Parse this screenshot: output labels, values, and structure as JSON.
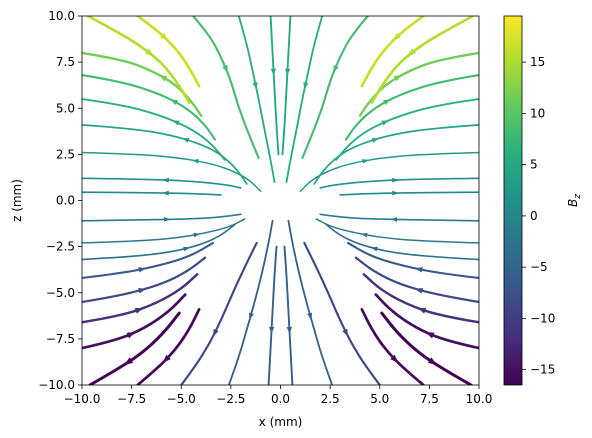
{
  "chart_data": {
    "type": "streamplot",
    "title": "",
    "xlabel": "x (mm)",
    "ylabel": "z (mm)",
    "xlim": [
      -10,
      10
    ],
    "ylim": [
      -10,
      10
    ],
    "x_ticks": [
      -10.0,
      -7.5,
      -5.0,
      -2.5,
      0.0,
      2.5,
      5.0,
      7.5,
      10.0
    ],
    "y_ticks": [
      -10.0,
      -7.5,
      -5.0,
      -2.5,
      0.0,
      2.5,
      5.0,
      7.5,
      10.0
    ],
    "x_tick_labels": [
      "−10.0",
      "−7.5",
      "−5.0",
      "−2.5",
      "0.0",
      "2.5",
      "5.0",
      "7.5",
      "10.0"
    ],
    "y_tick_labels": [
      "−10.0",
      "−7.5",
      "−5.0",
      "−2.5",
      "0.0",
      "2.5",
      "5.0",
      "7.5",
      "10.0"
    ],
    "grid": false,
    "field": "saddle (quadrupole-like) field: streamlines enter vertically near x=0 and bend outward horizontally; color encodes Bz",
    "colormap": "viridis",
    "colorbar": {
      "label": "B_z",
      "label_main": "B",
      "label_sub": "z",
      "vmin": -16.5,
      "vmax": 19.5,
      "ticks": [
        -15,
        -10,
        -5,
        0,
        5,
        10,
        15
      ],
      "tick_labels": [
        "−15",
        "−10",
        "−5",
        "0",
        "5",
        "10",
        "15"
      ]
    },
    "series": [
      {
        "values": [
          [
            -10,
            1.2
          ],
          [
            -7,
            1.16
          ],
          [
            -4.5,
            1.05
          ],
          [
            -2.7,
            0.85
          ],
          [
            -2,
            0.68
          ]
        ]
      },
      {
        "values": [
          [
            -10,
            0.45
          ],
          [
            -7,
            0.43
          ],
          [
            -4.5,
            0.38
          ],
          [
            -3,
            0.3
          ]
        ]
      },
      {
        "values": [
          [
            -10,
            2.6
          ],
          [
            -7,
            2.5
          ],
          [
            -5,
            2.3
          ],
          [
            -3.5,
            2.0
          ],
          [
            -2.5,
            1.65
          ],
          [
            -1.6,
            1.15
          ],
          [
            -1.0,
            0.5
          ]
        ]
      },
      {
        "values": [
          [
            -10,
            4.1
          ],
          [
            -7.5,
            3.9
          ],
          [
            -5.5,
            3.55
          ],
          [
            -4,
            3.05
          ],
          [
            -3,
            2.5
          ],
          [
            -2.2,
            1.7
          ],
          [
            -1.7,
            0.9
          ]
        ]
      },
      {
        "values": [
          [
            -10,
            5.5
          ],
          [
            -8,
            5.2
          ],
          [
            -6,
            4.6
          ],
          [
            -4.5,
            3.9
          ],
          [
            -3.5,
            3.1
          ],
          [
            -2.8,
            2.2
          ]
        ]
      },
      {
        "values": [
          [
            -10,
            6.8
          ],
          [
            -8,
            6.45
          ],
          [
            -6,
            5.75
          ],
          [
            -4.7,
            5.0
          ],
          [
            -3.8,
            4.1
          ],
          [
            -3.3,
            3.3
          ]
        ]
      },
      {
        "values": [
          [
            -10,
            8.0
          ],
          [
            -8,
            7.65
          ],
          [
            -6.5,
            7.05
          ],
          [
            -5.3,
            6.3
          ],
          [
            -4.5,
            5.4
          ],
          [
            -4.0,
            4.6
          ]
        ]
      },
      {
        "values": [
          [
            -9.7,
            10
          ],
          [
            -8.5,
            9.3
          ],
          [
            -7.2,
            8.5
          ],
          [
            -6.0,
            7.5
          ],
          [
            -5.2,
            6.4
          ],
          [
            -4.6,
            5.3
          ]
        ]
      },
      {
        "values": [
          [
            -7.2,
            10
          ],
          [
            -6.3,
            9.3
          ],
          [
            -5.4,
            8.4
          ],
          [
            -4.7,
            7.4
          ],
          [
            -4.1,
            6.2
          ]
        ]
      },
      {
        "values": [
          [
            -4.4,
            10
          ],
          [
            -3.6,
            9.0
          ],
          [
            -3.0,
            7.8
          ],
          [
            -2.5,
            6.5
          ],
          [
            -2.1,
            5.0
          ],
          [
            -1.6,
            3.6
          ],
          [
            -1.1,
            2.3
          ]
        ]
      },
      {
        "values": [
          [
            -2.1,
            10
          ],
          [
            -1.7,
            8.5
          ],
          [
            -1.4,
            7.0
          ],
          [
            -1.1,
            5.5
          ],
          [
            -0.8,
            3.8
          ],
          [
            -0.5,
            2.2
          ],
          [
            -0.3,
            1.0
          ]
        ]
      },
      {
        "values": [
          [
            -0.5,
            10
          ],
          [
            -0.4,
            8
          ],
          [
            -0.3,
            6
          ],
          [
            -0.2,
            4
          ],
          [
            -0.1,
            2.5
          ]
        ]
      },
      {
        "values": [
          [
            10,
            1.2
          ],
          [
            7,
            1.16
          ],
          [
            4.5,
            1.05
          ],
          [
            2.7,
            0.85
          ],
          [
            2,
            0.68
          ]
        ]
      },
      {
        "values": [
          [
            10,
            0.45
          ],
          [
            7,
            0.43
          ],
          [
            4.5,
            0.38
          ],
          [
            3,
            0.3
          ]
        ]
      },
      {
        "values": [
          [
            10,
            2.6
          ],
          [
            7,
            2.5
          ],
          [
            5,
            2.3
          ],
          [
            3.5,
            2.0
          ],
          [
            2.5,
            1.65
          ],
          [
            1.6,
            1.15
          ],
          [
            1.0,
            0.5
          ]
        ]
      },
      {
        "values": [
          [
            10,
            4.1
          ],
          [
            7.5,
            3.9
          ],
          [
            5.5,
            3.55
          ],
          [
            4,
            3.05
          ],
          [
            3,
            2.5
          ],
          [
            2.2,
            1.7
          ],
          [
            1.7,
            0.9
          ]
        ]
      },
      {
        "values": [
          [
            10,
            5.5
          ],
          [
            8,
            5.2
          ],
          [
            6,
            4.6
          ],
          [
            4.5,
            3.9
          ],
          [
            3.5,
            3.1
          ],
          [
            2.8,
            2.2
          ]
        ]
      },
      {
        "values": [
          [
            10,
            6.8
          ],
          [
            8,
            6.45
          ],
          [
            6,
            5.75
          ],
          [
            4.7,
            5.0
          ],
          [
            3.8,
            4.1
          ],
          [
            3.3,
            3.3
          ]
        ]
      },
      {
        "values": [
          [
            10,
            8.0
          ],
          [
            8,
            7.65
          ],
          [
            6.5,
            7.05
          ],
          [
            5.3,
            6.3
          ],
          [
            4.5,
            5.4
          ],
          [
            4.0,
            4.6
          ]
        ]
      },
      {
        "values": [
          [
            9.7,
            10
          ],
          [
            8.5,
            9.3
          ],
          [
            7.2,
            8.5
          ],
          [
            6.0,
            7.5
          ],
          [
            5.2,
            6.4
          ],
          [
            4.6,
            5.3
          ]
        ]
      },
      {
        "values": [
          [
            7.2,
            10
          ],
          [
            6.3,
            9.3
          ],
          [
            5.4,
            8.4
          ],
          [
            4.7,
            7.4
          ],
          [
            4.1,
            6.2
          ]
        ]
      },
      {
        "values": [
          [
            4.4,
            10
          ],
          [
            3.6,
            9.0
          ],
          [
            3.0,
            7.8
          ],
          [
            2.5,
            6.5
          ],
          [
            2.1,
            5.0
          ],
          [
            1.6,
            3.6
          ],
          [
            1.1,
            2.3
          ]
        ]
      },
      {
        "values": [
          [
            2.1,
            10
          ],
          [
            1.7,
            8.5
          ],
          [
            1.4,
            7.0
          ],
          [
            1.1,
            5.5
          ],
          [
            0.8,
            3.8
          ],
          [
            0.5,
            2.2
          ],
          [
            0.3,
            1.0
          ]
        ]
      },
      {
        "values": [
          [
            0.5,
            10
          ],
          [
            0.4,
            8
          ],
          [
            0.3,
            6
          ],
          [
            0.2,
            4
          ],
          [
            0.1,
            2.5
          ]
        ]
      },
      {
        "values": [
          [
            -10,
            -1.1
          ],
          [
            -7,
            -1.05
          ],
          [
            -4.5,
            -1.0
          ],
          [
            -3,
            -0.9
          ],
          [
            -2,
            -0.75
          ]
        ]
      },
      {
        "values": [
          [
            -10,
            -2.3
          ],
          [
            -7,
            -2.2
          ],
          [
            -5,
            -2.0
          ],
          [
            -3.5,
            -1.7
          ],
          [
            -2.5,
            -1.4
          ],
          [
            -1.8,
            -1.0
          ]
        ]
      },
      {
        "values": [
          [
            -10,
            -3.2
          ],
          [
            -7.5,
            -3.05
          ],
          [
            -5.5,
            -2.8
          ],
          [
            -4,
            -2.4
          ],
          [
            -3,
            -1.9
          ],
          [
            -2.3,
            -1.3
          ]
        ]
      },
      {
        "values": [
          [
            -10,
            -4.2
          ],
          [
            -8,
            -3.95
          ],
          [
            -6,
            -3.5
          ],
          [
            -4.5,
            -3.0
          ],
          [
            -3.4,
            -2.3
          ]
        ]
      },
      {
        "values": [
          [
            -10,
            -5.5
          ],
          [
            -8,
            -5.15
          ],
          [
            -6,
            -4.55
          ],
          [
            -4.7,
            -3.85
          ],
          [
            -3.8,
            -3.1
          ]
        ]
      },
      {
        "values": [
          [
            -10,
            -6.6
          ],
          [
            -8,
            -6.25
          ],
          [
            -6.3,
            -5.6
          ],
          [
            -5.0,
            -4.8
          ],
          [
            -4.2,
            -4.0
          ]
        ]
      },
      {
        "values": [
          [
            -10,
            -8.0
          ],
          [
            -8.3,
            -7.6
          ],
          [
            -6.8,
            -6.9
          ],
          [
            -5.6,
            -6.0
          ],
          [
            -4.8,
            -5.1
          ]
        ]
      },
      {
        "values": [
          [
            -9.6,
            -10
          ],
          [
            -8.3,
            -9.2
          ],
          [
            -7.0,
            -8.3
          ],
          [
            -5.9,
            -7.2
          ],
          [
            -5.1,
            -6.1
          ]
        ]
      },
      {
        "values": [
          [
            -7.2,
            -10
          ],
          [
            -6.2,
            -9.1
          ],
          [
            -5.3,
            -8.1
          ],
          [
            -4.6,
            -7.0
          ],
          [
            -4.1,
            -5.9
          ]
        ]
      },
      {
        "values": [
          [
            -5.0,
            -10
          ],
          [
            -4.3,
            -9.0
          ],
          [
            -3.6,
            -7.8
          ],
          [
            -3.0,
            -6.5
          ],
          [
            -2.4,
            -5.0
          ],
          [
            -1.8,
            -3.6
          ],
          [
            -1.2,
            -2.3
          ]
        ]
      },
      {
        "values": [
          [
            -2.6,
            -10
          ],
          [
            -2.1,
            -8.5
          ],
          [
            -1.7,
            -7.0
          ],
          [
            -1.3,
            -5.5
          ],
          [
            -0.9,
            -3.8
          ],
          [
            -0.6,
            -2.3
          ],
          [
            -0.4,
            -1.1
          ]
        ]
      },
      {
        "values": [
          [
            -0.6,
            -10
          ],
          [
            -0.5,
            -8
          ],
          [
            -0.4,
            -6
          ],
          [
            -0.3,
            -4
          ],
          [
            -0.2,
            -2.5
          ]
        ]
      },
      {
        "values": [
          [
            10,
            -1.1
          ],
          [
            7,
            -1.05
          ],
          [
            4.5,
            -1.0
          ],
          [
            3,
            -0.9
          ],
          [
            2,
            -0.75
          ]
        ]
      },
      {
        "values": [
          [
            10,
            -2.3
          ],
          [
            7,
            -2.2
          ],
          [
            5,
            -2.0
          ],
          [
            3.5,
            -1.7
          ],
          [
            2.5,
            -1.4
          ],
          [
            1.8,
            -1.0
          ]
        ]
      },
      {
        "values": [
          [
            10,
            -3.2
          ],
          [
            7.5,
            -3.05
          ],
          [
            5.5,
            -2.8
          ],
          [
            4,
            -2.4
          ],
          [
            3,
            -1.9
          ],
          [
            2.3,
            -1.3
          ]
        ]
      },
      {
        "values": [
          [
            10,
            -4.2
          ],
          [
            8,
            -3.95
          ],
          [
            6,
            -3.5
          ],
          [
            4.5,
            -3.0
          ],
          [
            3.4,
            -2.3
          ]
        ]
      },
      {
        "values": [
          [
            10,
            -5.5
          ],
          [
            8,
            -5.15
          ],
          [
            6,
            -4.55
          ],
          [
            4.7,
            -3.85
          ],
          [
            3.8,
            -3.1
          ]
        ]
      },
      {
        "values": [
          [
            10,
            -6.6
          ],
          [
            8,
            -6.25
          ],
          [
            6.3,
            -5.6
          ],
          [
            5.0,
            -4.8
          ],
          [
            4.2,
            -4.0
          ]
        ]
      },
      {
        "values": [
          [
            10,
            -8.0
          ],
          [
            8.3,
            -7.6
          ],
          [
            6.8,
            -6.9
          ],
          [
            5.6,
            -6.0
          ],
          [
            4.8,
            -5.1
          ]
        ]
      },
      {
        "values": [
          [
            9.6,
            -10
          ],
          [
            8.3,
            -9.2
          ],
          [
            7.0,
            -8.3
          ],
          [
            5.9,
            -7.2
          ],
          [
            5.1,
            -6.1
          ]
        ]
      },
      {
        "values": [
          [
            7.2,
            -10
          ],
          [
            6.2,
            -9.1
          ],
          [
            5.3,
            -8.1
          ],
          [
            4.6,
            -7.0
          ],
          [
            4.1,
            -5.9
          ]
        ]
      },
      {
        "values": [
          [
            5.0,
            -10
          ],
          [
            4.3,
            -9.0
          ],
          [
            3.6,
            -7.8
          ],
          [
            3.0,
            -6.5
          ],
          [
            2.4,
            -5.0
          ],
          [
            1.8,
            -3.6
          ],
          [
            1.2,
            -2.3
          ]
        ]
      },
      {
        "values": [
          [
            2.6,
            -10
          ],
          [
            2.1,
            -8.5
          ],
          [
            1.7,
            -7.0
          ],
          [
            1.3,
            -5.5
          ],
          [
            0.9,
            -3.8
          ],
          [
            0.6,
            -2.3
          ],
          [
            0.4,
            -1.1
          ]
        ]
      },
      {
        "values": [
          [
            0.6,
            -10
          ],
          [
            0.5,
            -8
          ],
          [
            0.4,
            -6
          ],
          [
            0.3,
            -4
          ],
          [
            0.2,
            -2.5
          ]
        ]
      }
    ]
  }
}
